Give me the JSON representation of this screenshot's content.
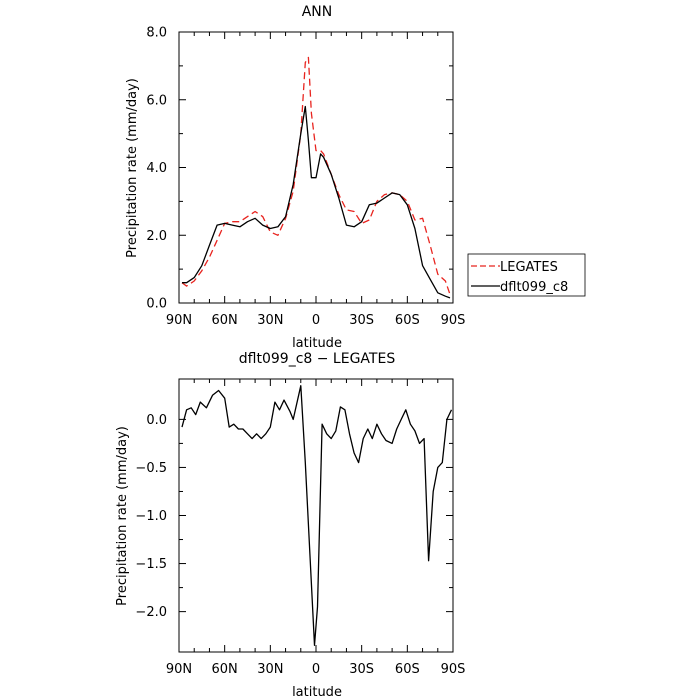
{
  "chart_data": [
    {
      "type": "line",
      "title": "ANN",
      "xlabel": "latitude",
      "ylabel": "Precipitation rate  (mm/day)",
      "xlim": [
        90,
        -90
      ],
      "ylim": [
        0,
        8
      ],
      "x_ticks": [
        90,
        60,
        30,
        0,
        -30,
        -60,
        -90
      ],
      "x_tick_labels": [
        "90N",
        "60N",
        "30N",
        "0",
        "30S",
        "60S",
        "90S"
      ],
      "y_ticks": [
        0,
        2,
        4,
        6,
        8
      ],
      "y_tick_labels": [
        "0.0",
        "2.0",
        "4.0",
        "6.0",
        "8.0"
      ],
      "legend": "right",
      "series": [
        {
          "name": "LEGATES",
          "color": "#e8241f",
          "dash": "dashed",
          "x": [
            88,
            85,
            80,
            75,
            70,
            65,
            60,
            55,
            50,
            45,
            40,
            35,
            30,
            25,
            20,
            15,
            10,
            7,
            5,
            3,
            0,
            -3,
            -5,
            -10,
            -15,
            -20,
            -25,
            -30,
            -35,
            -40,
            -45,
            -50,
            -55,
            -60,
            -65,
            -70,
            -75,
            -80,
            -85,
            -88
          ],
          "y": [
            0.6,
            0.5,
            0.65,
            0.95,
            1.35,
            1.85,
            2.35,
            2.4,
            2.4,
            2.55,
            2.7,
            2.55,
            2.1,
            2.0,
            2.5,
            3.3,
            5.0,
            7.1,
            7.25,
            5.6,
            4.5,
            4.5,
            4.4,
            3.8,
            3.2,
            2.75,
            2.7,
            2.35,
            2.45,
            3.0,
            3.2,
            3.25,
            3.2,
            3.0,
            2.45,
            2.5,
            1.7,
            0.85,
            0.65,
            0.25
          ]
        },
        {
          "name": "dflt099_c8",
          "color": "#000000",
          "dash": "solid",
          "x": [
            88,
            85,
            80,
            75,
            70,
            65,
            60,
            55,
            50,
            45,
            40,
            35,
            30,
            25,
            20,
            15,
            10,
            7,
            5,
            3,
            0,
            -3,
            -5,
            -10,
            -15,
            -20,
            -25,
            -30,
            -35,
            -40,
            -45,
            -50,
            -55,
            -60,
            -65,
            -70,
            -75,
            -80,
            -85,
            -88
          ],
          "y": [
            0.6,
            0.6,
            0.75,
            1.1,
            1.7,
            2.3,
            2.35,
            2.3,
            2.25,
            2.4,
            2.5,
            2.3,
            2.2,
            2.25,
            2.55,
            3.5,
            5.0,
            5.8,
            4.8,
            3.7,
            3.7,
            4.4,
            4.3,
            3.8,
            3.1,
            2.3,
            2.25,
            2.4,
            2.9,
            2.95,
            3.1,
            3.25,
            3.2,
            2.9,
            2.2,
            1.1,
            0.7,
            0.3,
            0.2,
            0.15
          ]
        }
      ]
    },
    {
      "type": "line",
      "title": "dflt099_c8 − LEGATES",
      "xlabel": "latitude",
      "ylabel": "Precipitation rate  (mm/day)",
      "xlim": [
        90,
        -90
      ],
      "ylim": [
        -2.42,
        0.42
      ],
      "x_ticks": [
        90,
        60,
        30,
        0,
        -30,
        -60,
        -90
      ],
      "x_tick_labels": [
        "90N",
        "60N",
        "30N",
        "0",
        "30S",
        "60S",
        "90S"
      ],
      "y_ticks": [
        0,
        -0.5,
        -1.0,
        -1.5,
        -2.0
      ],
      "y_tick_labels": [
        "0.0",
        "−0.5",
        "−1.0",
        "−1.5",
        "−2.0"
      ],
      "series": [
        {
          "name": "",
          "color": "#000000",
          "dash": "solid",
          "x": [
            88,
            85,
            82,
            79,
            76,
            72,
            68,
            64,
            60,
            57,
            54,
            51,
            48,
            45,
            42,
            39,
            36,
            33,
            30,
            27,
            24,
            21,
            17,
            15,
            10,
            7,
            4,
            1,
            -1,
            -4,
            -7,
            -10,
            -13,
            -16,
            -19,
            -22,
            -25,
            -28,
            -31,
            -34,
            -37,
            -40,
            -43,
            -46,
            -50,
            -53,
            -56,
            -59,
            -62,
            -65,
            -68,
            -71,
            -74,
            -77,
            -80,
            -83,
            -86,
            -89
          ],
          "y": [
            -0.08,
            0.1,
            0.12,
            0.05,
            0.18,
            0.12,
            0.25,
            0.3,
            0.22,
            -0.08,
            -0.05,
            -0.1,
            -0.1,
            -0.15,
            -0.2,
            -0.15,
            -0.2,
            -0.15,
            -0.08,
            0.18,
            0.1,
            0.2,
            0.08,
            0.0,
            0.35,
            -0.45,
            -1.4,
            -2.35,
            -1.95,
            -0.05,
            -0.15,
            -0.2,
            -0.12,
            0.13,
            0.1,
            -0.15,
            -0.35,
            -0.45,
            -0.2,
            -0.1,
            -0.2,
            -0.05,
            -0.15,
            -0.22,
            -0.25,
            -0.1,
            0.0,
            0.1,
            -0.05,
            -0.12,
            -0.25,
            -0.2,
            -1.47,
            -0.75,
            -0.5,
            -0.45,
            0.0,
            0.1
          ]
        }
      ]
    }
  ]
}
